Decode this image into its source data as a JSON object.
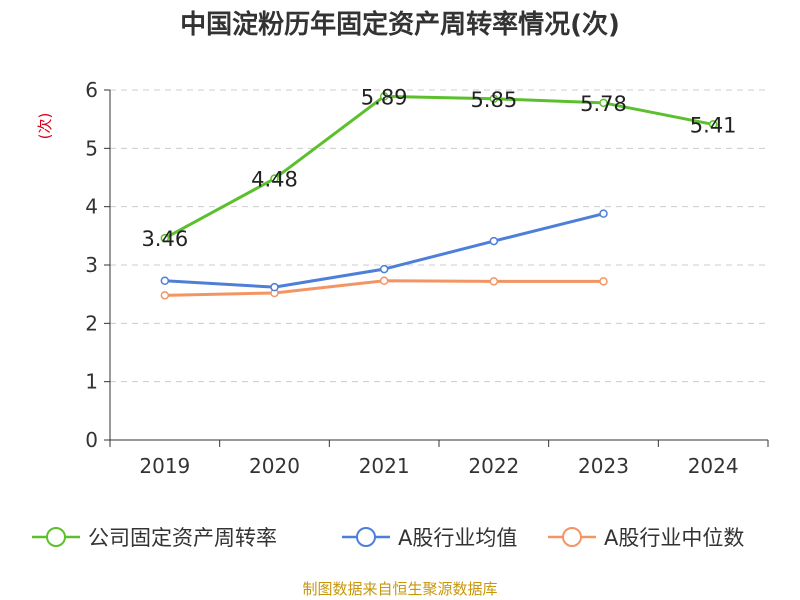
{
  "chart_data": {
    "type": "line",
    "title": "中国淀粉历年固定资产周转率情况(次)",
    "ylabel": "(次)",
    "xlabel": "",
    "categories": [
      "2019",
      "2020",
      "2021",
      "2022",
      "2023",
      "2024"
    ],
    "ylim": [
      0,
      6
    ],
    "yticks": [
      "0",
      "1",
      "2",
      "3",
      "4",
      "5",
      "6"
    ],
    "grid": true,
    "legend_position": "bottom",
    "series": [
      {
        "name": "公司固定资产周转率",
        "color": "#5cc02d",
        "values": [
          3.46,
          4.48,
          5.89,
          5.85,
          5.78,
          5.41
        ],
        "labels": [
          "3.46",
          "4.48",
          "5.89",
          "5.85",
          "5.78",
          "5.41"
        ],
        "show_labels": true
      },
      {
        "name": "A股行业均值",
        "color": "#4e7fd8",
        "values": [
          2.73,
          2.62,
          2.93,
          3.41,
          3.88,
          null
        ],
        "show_labels": false
      },
      {
        "name": "A股行业中位数",
        "color": "#f39562",
        "values": [
          2.48,
          2.52,
          2.73,
          2.72,
          2.72,
          null
        ],
        "show_labels": false
      }
    ],
    "source": "制图数据来自恒生聚源数据库"
  }
}
